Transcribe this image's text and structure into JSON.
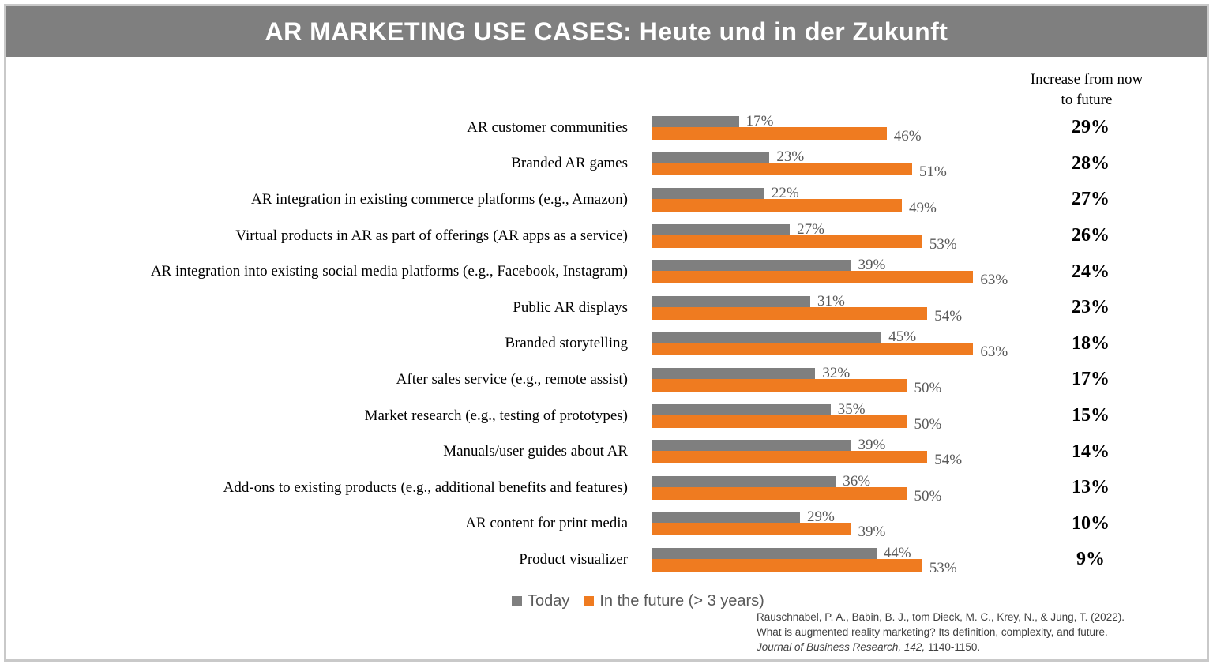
{
  "title": "AR MARKETING USE CASES: Heute und in der Zukunft",
  "increase_header": {
    "line1": "Increase from now",
    "line2": "to future"
  },
  "legend": {
    "today_label": "Today",
    "future_label": "In the future (> 3 years)"
  },
  "source": {
    "line1": "Rauschnabel, P. A., Babin, B. J., tom Dieck, M. C., Krey, N., & Jung, T. (2022).",
    "line2": "What is augmented reality marketing? Its definition, complexity, and future.",
    "line3_italic": "Journal of Business Research, 142,",
    "line3_plain": " 1140-1150."
  },
  "colors": {
    "titlebar": "#7f7f7f",
    "today_bar": "#7f7f7f",
    "future_bar": "#ef7b20",
    "value_label": "#595959",
    "frame_border": "#c9c9c9"
  },
  "chart_data": {
    "type": "bar",
    "orientation": "horizontal",
    "title": "AR MARKETING USE CASES: Heute und in der Zukunft",
    "unit": "%",
    "xlim": [
      0,
      70
    ],
    "grid": false,
    "legend_position": "bottom",
    "value_labels": true,
    "categories": [
      "AR customer communities",
      "Branded AR games",
      "AR integration in existing commerce platforms (e.g., Amazon)",
      "Virtual products in AR as part of offerings (AR apps as a service)",
      "AR integration into existing social media platforms (e.g., Facebook, Instagram)",
      "Public AR displays",
      "Branded storytelling",
      "After sales service (e.g., remote assist)",
      "Market research (e.g., testing of prototypes)",
      "Manuals/user guides about AR",
      "Add-ons to existing products (e.g., additional benefits and features)",
      "AR content for print media",
      "Product visualizer"
    ],
    "series": [
      {
        "name": "Today",
        "values": [
          17,
          23,
          22,
          27,
          39,
          31,
          45,
          32,
          35,
          39,
          36,
          29,
          44
        ]
      },
      {
        "name": "In the future (> 3 years)",
        "values": [
          46,
          51,
          49,
          53,
          63,
          54,
          63,
          50,
          50,
          54,
          50,
          39,
          53
        ]
      }
    ],
    "increase_column": {
      "header": "Increase from now to future",
      "values": [
        29,
        28,
        27,
        26,
        24,
        23,
        18,
        17,
        15,
        14,
        13,
        10,
        9
      ]
    }
  }
}
